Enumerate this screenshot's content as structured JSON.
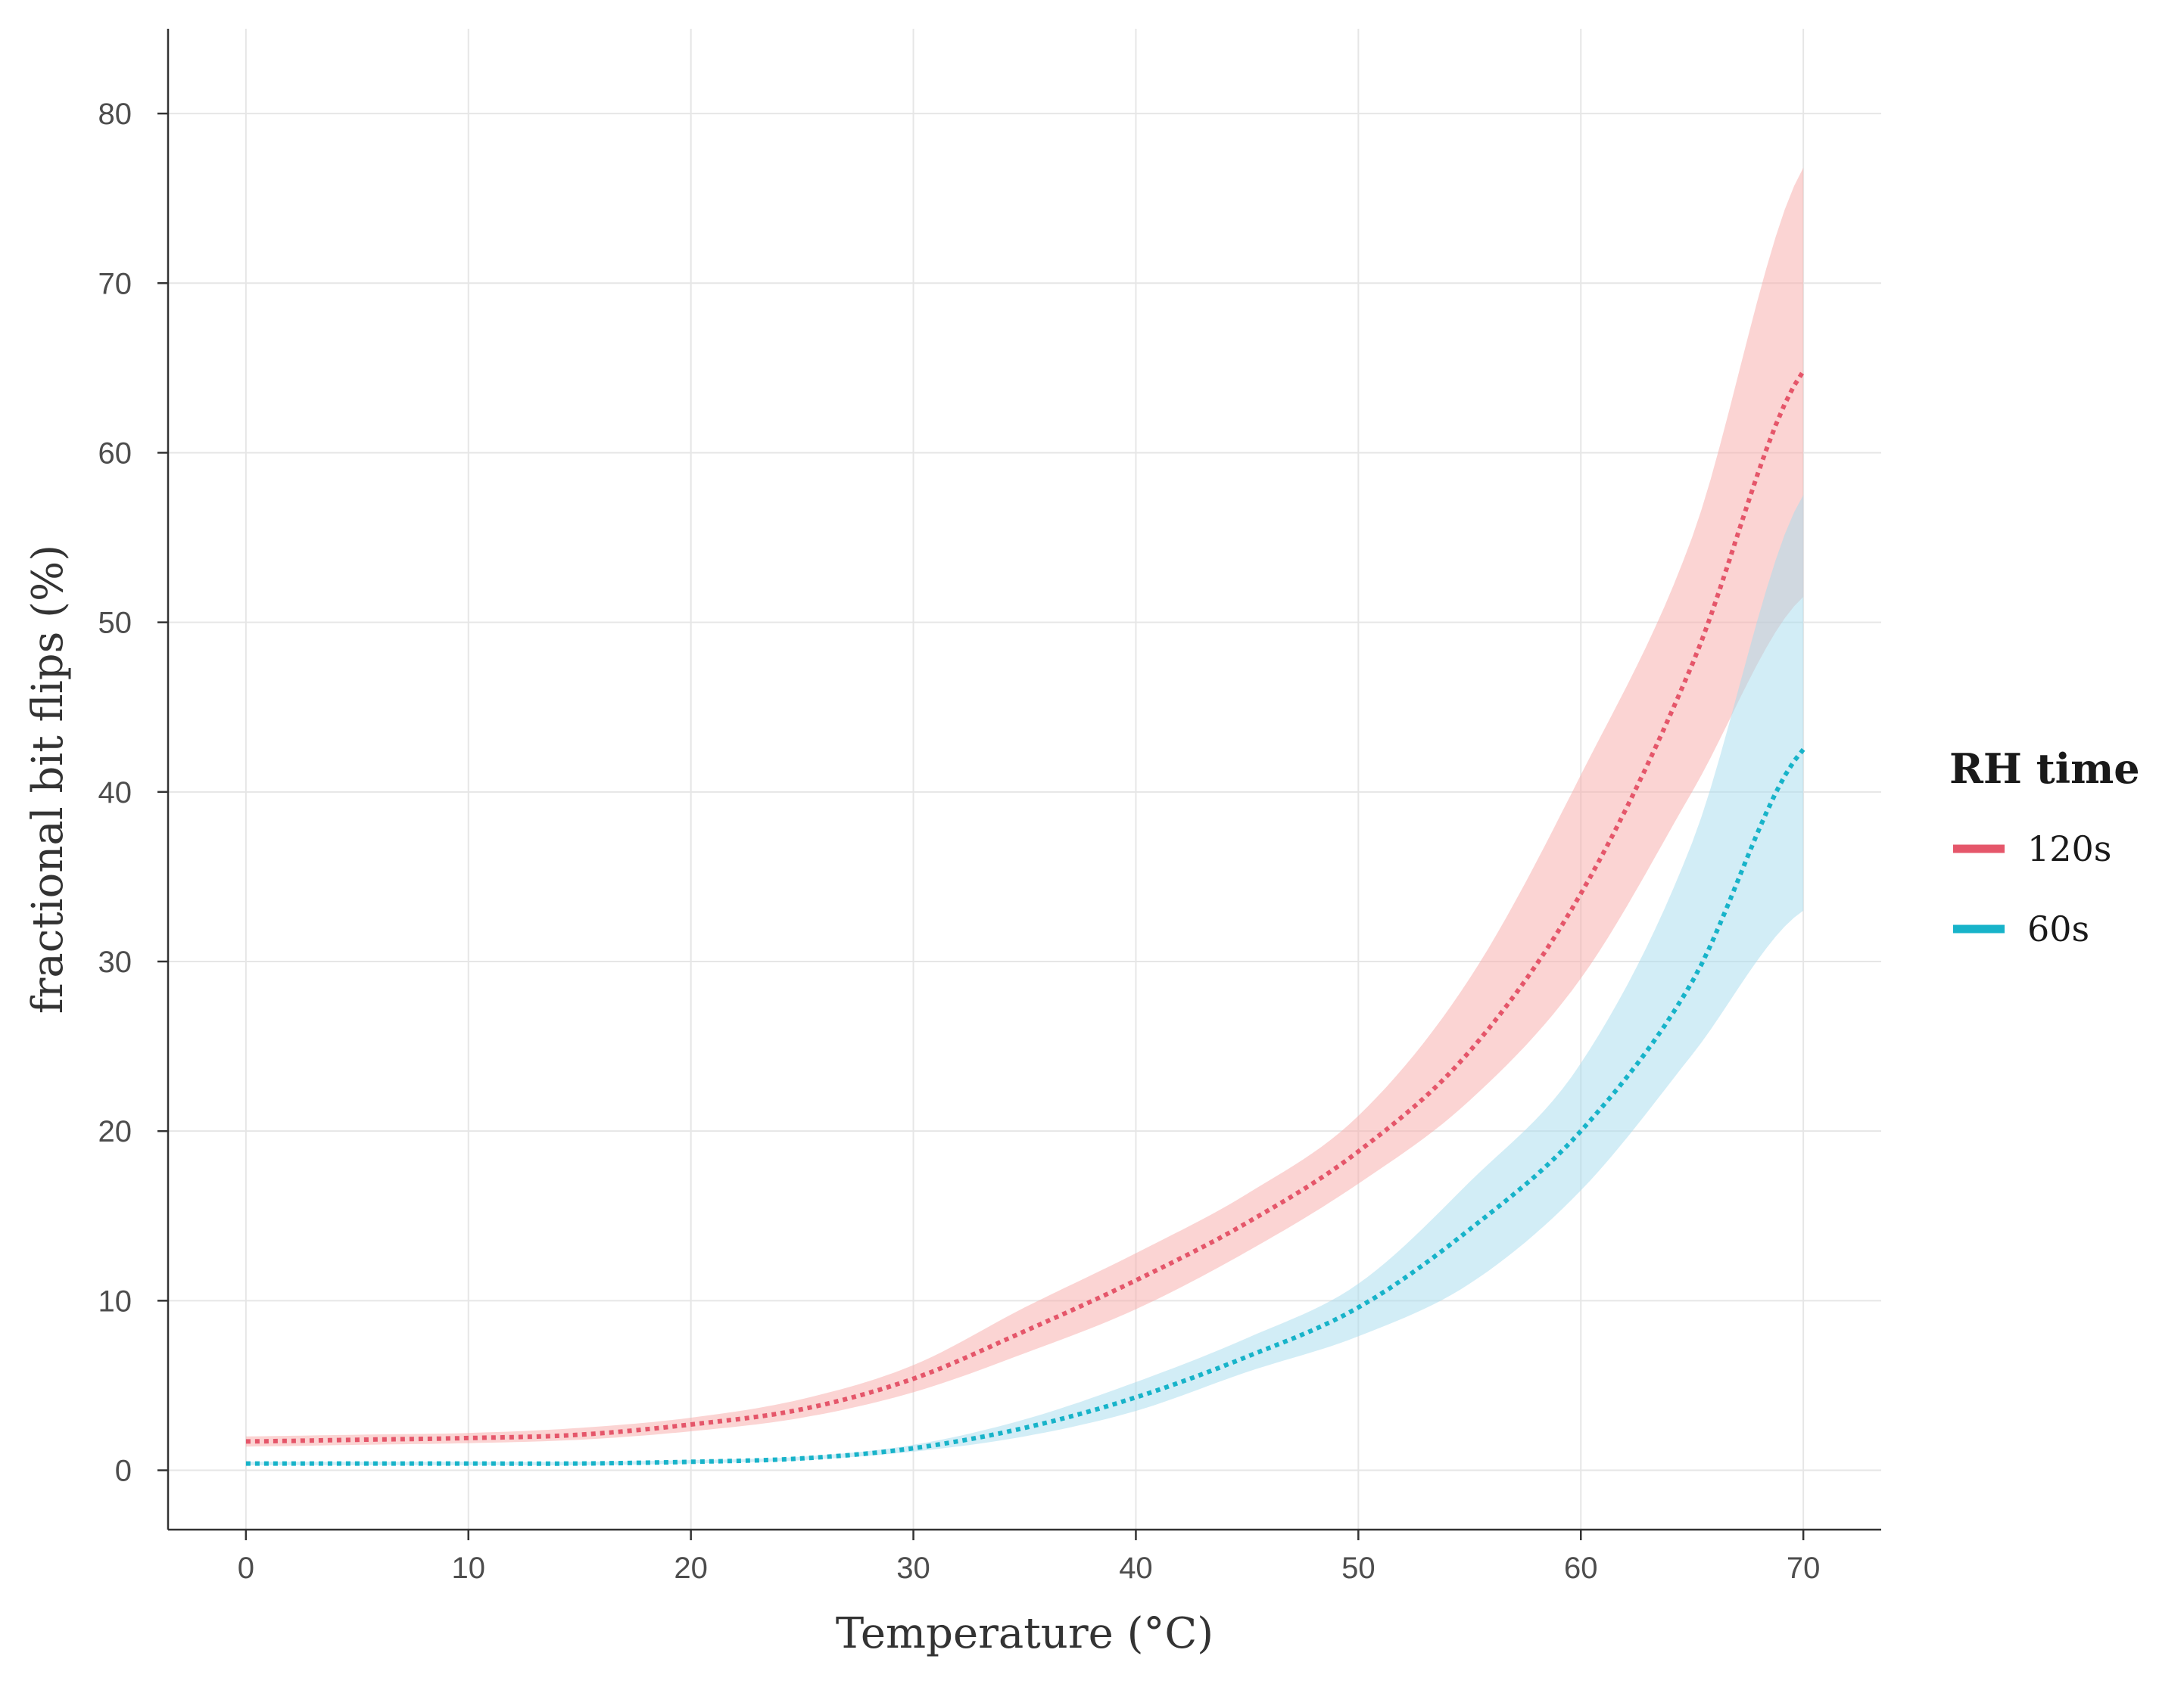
{
  "chart_data": {
    "type": "line",
    "title": "",
    "xlabel": "Temperature (°C)",
    "ylabel": "fractional bit flips (%)",
    "xlim": [
      -3.5,
      73.5
    ],
    "ylim": [
      -3.5,
      85
    ],
    "xticks": [
      0,
      10,
      20,
      30,
      40,
      50,
      60,
      70
    ],
    "yticks": [
      0,
      10,
      20,
      30,
      40,
      50,
      60,
      70,
      80
    ],
    "grid": true,
    "legend": {
      "title": "RH time",
      "position": "right"
    },
    "x": [
      0,
      5,
      10,
      15,
      20,
      25,
      30,
      35,
      40,
      45,
      50,
      55,
      60,
      65,
      70
    ],
    "series": [
      {
        "name": "120s",
        "color": "#e5566a",
        "band_color": "#f8a9a8",
        "values": [
          1.7,
          1.8,
          1.9,
          2.1,
          2.7,
          3.6,
          5.4,
          8.2,
          11.2,
          14.6,
          18.8,
          24.7,
          34.0,
          47.5,
          64.8
        ],
        "lower": [
          1.4,
          1.5,
          1.6,
          1.8,
          2.3,
          3.1,
          4.6,
          6.9,
          9.5,
          12.9,
          16.9,
          21.8,
          29.0,
          40.0,
          51.5
        ],
        "upper": [
          2.0,
          2.1,
          2.2,
          2.5,
          3.1,
          4.2,
          6.2,
          9.6,
          12.8,
          16.3,
          20.9,
          29.0,
          41.0,
          55.0,
          76.8
        ]
      },
      {
        "name": "60s",
        "color": "#17b3c9",
        "band_color": "#a6dcee",
        "values": [
          0.4,
          0.4,
          0.4,
          0.4,
          0.5,
          0.7,
          1.3,
          2.5,
          4.3,
          6.7,
          9.6,
          14.2,
          20.0,
          28.8,
          42.5
        ],
        "lower": [
          0.3,
          0.3,
          0.3,
          0.3,
          0.4,
          0.6,
          1.1,
          2.0,
          3.5,
          5.8,
          7.9,
          11.0,
          16.5,
          24.5,
          33.0
        ],
        "upper": [
          0.5,
          0.5,
          0.5,
          0.5,
          0.6,
          0.8,
          1.5,
          3.0,
          5.2,
          7.8,
          11.0,
          17.0,
          24.0,
          37.0,
          57.5
        ]
      }
    ]
  }
}
